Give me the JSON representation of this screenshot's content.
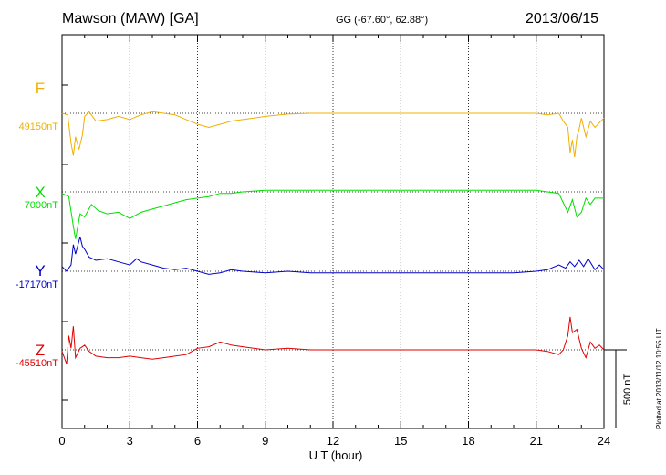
{
  "header": {
    "station": "Mawson (MAW)  [GA]",
    "coords": "GG (-67.60°,  62.88°)",
    "date": "2013/06/15"
  },
  "footer": {
    "plotted": "Plotted at 2013/11/12 10:55 UT"
  },
  "colors": {
    "F": "#f0b000",
    "X": "#00e000",
    "Y": "#0000cc",
    "Z": "#e00000"
  },
  "chart_data": {
    "type": "line",
    "xlabel": "U T (hour)",
    "xlim": [
      0,
      24
    ],
    "xticks": [
      "0",
      "3",
      "6",
      "9",
      "12",
      "15",
      "18",
      "21",
      "24"
    ],
    "scale_bar_label": "500 nT",
    "scale_bar_nT": 500,
    "grid": "vertical dotted lines every 3 hours, horizontal dotted baseline per series",
    "series": [
      {
        "name": "F",
        "baseline_label": "49150nT",
        "baseline": 49150,
        "x": [
          0,
          0.25,
          0.4,
          0.5,
          0.6,
          0.75,
          0.9,
          1.0,
          1.2,
          1.5,
          2,
          2.5,
          3,
          3.5,
          4,
          4.5,
          5,
          5.5,
          6,
          6.5,
          7,
          7.5,
          8,
          8.5,
          9,
          10,
          11,
          12,
          13,
          14,
          15,
          16,
          17,
          18,
          19,
          20,
          21,
          21.5,
          22,
          22.2,
          22.4,
          22.5,
          22.6,
          22.7,
          22.8,
          22.9,
          23,
          23.2,
          23.4,
          23.6,
          24
        ],
        "y": [
          49150,
          49140,
          48960,
          48880,
          49000,
          48920,
          49010,
          49130,
          49160,
          49100,
          49110,
          49130,
          49110,
          49140,
          49160,
          49150,
          49140,
          49110,
          49080,
          49060,
          49080,
          49100,
          49110,
          49120,
          49130,
          49145,
          49150,
          49150,
          49150,
          49150,
          49150,
          49150,
          49150,
          49150,
          49150,
          49150,
          49150,
          49140,
          49150,
          49100,
          49060,
          48900,
          48980,
          48870,
          49000,
          49050,
          49120,
          49000,
          49100,
          49060,
          49120
        ]
      },
      {
        "name": "X",
        "baseline_label": "7000nT",
        "baseline": 7000,
        "x": [
          0,
          0.3,
          0.5,
          0.6,
          0.8,
          1.0,
          1.3,
          1.6,
          2,
          2.5,
          3,
          3.5,
          4,
          4.5,
          5,
          5.5,
          6,
          6.5,
          7,
          7.5,
          8,
          9,
          10,
          11,
          12,
          13,
          14,
          15,
          16,
          17,
          18,
          19,
          20,
          21,
          21.5,
          22,
          22.2,
          22.4,
          22.6,
          22.8,
          23,
          23.2,
          23.4,
          23.6,
          24
        ],
        "y": [
          6990,
          6970,
          6780,
          6700,
          6860,
          6840,
          6920,
          6880,
          6860,
          6870,
          6830,
          6870,
          6890,
          6910,
          6930,
          6950,
          6960,
          6970,
          6990,
          6990,
          7000,
          7010,
          7010,
          7010,
          7010,
          7010,
          7010,
          7010,
          7010,
          7010,
          7010,
          7010,
          7010,
          7010,
          7000,
          6990,
          6930,
          6870,
          6950,
          6840,
          6870,
          6960,
          6920,
          6960,
          6960
        ]
      },
      {
        "name": "Y",
        "baseline_label": "-17170nT",
        "baseline": -17170,
        "x": [
          0,
          0.2,
          0.4,
          0.5,
          0.6,
          0.8,
          0.9,
          1.0,
          1.2,
          1.5,
          2,
          2.5,
          3,
          3.3,
          3.5,
          4,
          4.5,
          5,
          5.5,
          6,
          6.5,
          7,
          7.5,
          8,
          9,
          10,
          11,
          12,
          13,
          14,
          15,
          16,
          17,
          18,
          19,
          20,
          21,
          21.5,
          22,
          22.3,
          22.5,
          22.7,
          22.9,
          23.1,
          23.3,
          23.6,
          23.8,
          24
        ],
        "y": [
          -17140,
          -17170,
          -17130,
          -17000,
          -17060,
          -16950,
          -17010,
          -17030,
          -17080,
          -17100,
          -17090,
          -17110,
          -17130,
          -17090,
          -17110,
          -17130,
          -17150,
          -17160,
          -17150,
          -17170,
          -17190,
          -17180,
          -17160,
          -17170,
          -17180,
          -17170,
          -17180,
          -17180,
          -17180,
          -17180,
          -17180,
          -17180,
          -17180,
          -17180,
          -17180,
          -17180,
          -17170,
          -17160,
          -17130,
          -17150,
          -17110,
          -17140,
          -17100,
          -17140,
          -17090,
          -17160,
          -17130,
          -17160
        ]
      },
      {
        "name": "Z",
        "baseline_label": "-45510nT",
        "baseline": -45510,
        "x": [
          0,
          0.2,
          0.3,
          0.4,
          0.5,
          0.6,
          0.8,
          1.0,
          1.2,
          1.5,
          2,
          2.5,
          3,
          3.5,
          4,
          4.5,
          5,
          5.5,
          6,
          6.5,
          7,
          7.5,
          8,
          9,
          10,
          11,
          12,
          13,
          14,
          15,
          16,
          17,
          18,
          19,
          20,
          21,
          21.5,
          22,
          22.2,
          22.4,
          22.5,
          22.6,
          22.8,
          23,
          23.2,
          23.4,
          23.6,
          23.8,
          24
        ],
        "y": [
          -45520,
          -45600,
          -45420,
          -45500,
          -45360,
          -45560,
          -45500,
          -45480,
          -45520,
          -45550,
          -45560,
          -45560,
          -45550,
          -45560,
          -45570,
          -45560,
          -45550,
          -45540,
          -45500,
          -45490,
          -45460,
          -45480,
          -45490,
          -45510,
          -45500,
          -45510,
          -45510,
          -45510,
          -45510,
          -45510,
          -45510,
          -45510,
          -45510,
          -45510,
          -45510,
          -45510,
          -45520,
          -45540,
          -45510,
          -45420,
          -45300,
          -45400,
          -45380,
          -45500,
          -45560,
          -45460,
          -45500,
          -45480,
          -45510
        ]
      }
    ]
  }
}
